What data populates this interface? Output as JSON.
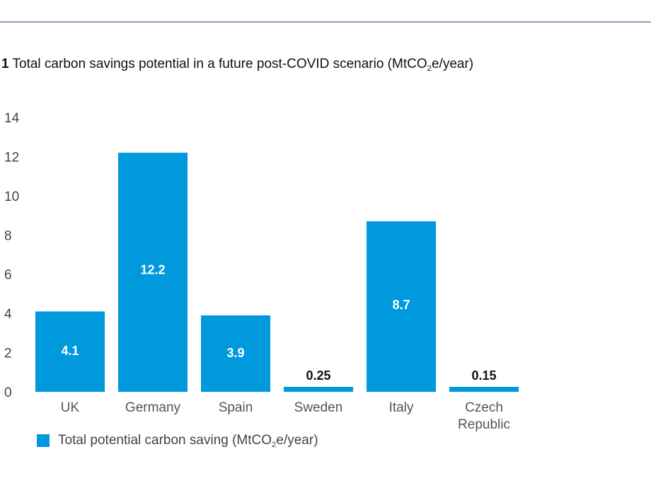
{
  "title": {
    "number": "1",
    "text_before": "Total carbon savings potential in a future post-COVID scenario (MtCO",
    "subscript": "2",
    "text_after": "e/year)"
  },
  "colors": {
    "bar": "#0099dd",
    "top_rule": "#8aa0c4"
  },
  "chart_data": {
    "type": "bar",
    "title": "Total carbon savings potential in a future post-COVID scenario (MtCO2e/year)",
    "categories": [
      "UK",
      "Germany",
      "Spain",
      "Sweden",
      "Italy",
      "Czech Republic"
    ],
    "category_lines": [
      [
        "UK"
      ],
      [
        "Germany"
      ],
      [
        "Spain"
      ],
      [
        "Sweden"
      ],
      [
        "Italy"
      ],
      [
        "Czech",
        "Republic"
      ]
    ],
    "series": [
      {
        "name": "Total potential carbon saving (MtCO2e/year)",
        "values": [
          4.1,
          12.2,
          3.9,
          0.25,
          8.7,
          0.15
        ],
        "labels": [
          "4.1",
          "12.2",
          "3.9",
          "0.25",
          "8.7",
          "0.15"
        ]
      }
    ],
    "yticks": [
      "0",
      "2",
      "4",
      "6",
      "8",
      "10",
      "12",
      "14"
    ],
    "ylim": [
      0,
      14
    ],
    "xlabel": "",
    "ylabel": "",
    "grid": false,
    "legend_position": "bottom-left"
  },
  "legend": {
    "text_before": "Total potential carbon saving (MtCO",
    "subscript": "2",
    "text_after": "e/year)"
  }
}
